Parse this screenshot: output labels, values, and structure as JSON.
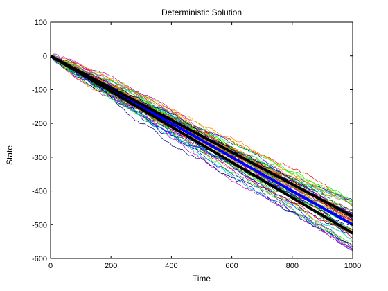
{
  "chart_data": {
    "type": "line",
    "title": "Deterministic Solution",
    "xlabel": "Time",
    "ylabel": "State",
    "xlim": [
      0,
      1000
    ],
    "ylim": [
      -600,
      100
    ],
    "xticks": [
      0,
      200,
      400,
      600,
      800,
      1000
    ],
    "yticks": [
      100,
      0,
      -100,
      -200,
      -300,
      -400,
      -500,
      -600
    ],
    "grid": false,
    "legend": "none",
    "sample_paths": {
      "count": 60,
      "x_start": 0,
      "x_end": 1000,
      "start_value": 0,
      "end_value_range": [
        -580,
        -420
      ],
      "colors": [
        "#0000ff",
        "#008000",
        "#ff0000",
        "#00bfbf",
        "#bf00bf",
        "#bfbf00",
        "#ff8000",
        "#00ff00",
        "#000080",
        "#808000"
      ]
    },
    "series": [
      {
        "x": [
          0,
          1000
        ],
        "y": [
          0,
          -500
        ],
        "color": "#0000ff"
      },
      {
        "x": [
          0,
          1000
        ],
        "y": [
          0,
          -475
        ],
        "color": "#000000"
      },
      {
        "x": [
          0,
          1000
        ],
        "y": [
          0,
          -525
        ],
        "color": "#000000"
      }
    ]
  }
}
